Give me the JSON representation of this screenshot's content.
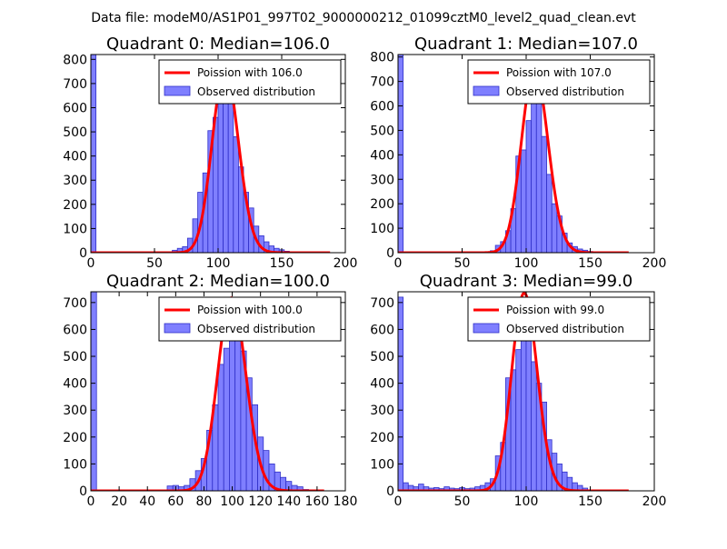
{
  "suptitle": "Data file: modeM0/AS1P01_997T02_9000000212_01099cztM0_level2_quad_clean.evt",
  "colors": {
    "bar_fill": "#7f7fff",
    "bar_edge": "#2f2fc8",
    "line": "#ff0000",
    "frame": "#000000"
  },
  "chart_data": [
    {
      "type": "bar",
      "title": "Quadrant 0: Median=106.0",
      "xlim": [
        0,
        200
      ],
      "ylim": [
        0,
        820
      ],
      "xticks": [
        0,
        50,
        100,
        150,
        200
      ],
      "yticks": [
        0,
        100,
        200,
        300,
        400,
        500,
        600,
        700,
        800
      ],
      "legend_position": "top-right",
      "legend": {
        "line": "Poission with 106.0",
        "bars": "Observed distribution"
      },
      "bin_width": 4,
      "bins": [
        [
          0,
          820
        ],
        [
          64,
          10
        ],
        [
          68,
          18
        ],
        [
          72,
          25
        ],
        [
          76,
          60
        ],
        [
          80,
          140
        ],
        [
          84,
          250
        ],
        [
          88,
          330
        ],
        [
          92,
          505
        ],
        [
          96,
          560
        ],
        [
          100,
          700
        ],
        [
          104,
          760
        ],
        [
          108,
          750
        ],
        [
          112,
          480
        ],
        [
          116,
          355
        ],
        [
          120,
          250
        ],
        [
          124,
          185
        ],
        [
          128,
          110
        ],
        [
          132,
          70
        ],
        [
          136,
          45
        ],
        [
          140,
          28
        ],
        [
          144,
          18
        ],
        [
          148,
          12
        ],
        [
          152,
          6
        ],
        [
          156,
          3
        ]
      ],
      "poisson_lambda": 106.0,
      "poisson_scale": 781,
      "line_xmax": 188
    },
    {
      "type": "bar",
      "title": "Quadrant 1: Median=107.0",
      "xlim": [
        0,
        200
      ],
      "ylim": [
        0,
        810
      ],
      "xticks": [
        0,
        50,
        100,
        150,
        200
      ],
      "yticks": [
        0,
        100,
        200,
        300,
        400,
        500,
        600,
        700,
        800
      ],
      "legend_position": "top-right",
      "legend": {
        "line": "Poission with 107.0",
        "bars": "Observed distribution"
      },
      "bin_width": 4,
      "bins": [
        [
          0,
          810
        ],
        [
          72,
          8
        ],
        [
          76,
          30
        ],
        [
          80,
          45
        ],
        [
          84,
          90
        ],
        [
          88,
          180
        ],
        [
          92,
          395
        ],
        [
          96,
          420
        ],
        [
          100,
          540
        ],
        [
          104,
          690
        ],
        [
          108,
          620
        ],
        [
          112,
          475
        ],
        [
          116,
          320
        ],
        [
          120,
          200
        ],
        [
          124,
          150
        ],
        [
          128,
          80
        ],
        [
          132,
          40
        ],
        [
          136,
          25
        ],
        [
          140,
          15
        ],
        [
          144,
          10
        ],
        [
          148,
          5
        ]
      ],
      "poisson_lambda": 107.0,
      "poisson_scale": 778,
      "line_xmax": 180
    },
    {
      "type": "bar",
      "title": "Quadrant 2: Median=100.0",
      "xlim": [
        0,
        180
      ],
      "ylim": [
        0,
        740
      ],
      "xticks": [
        0,
        20,
        40,
        60,
        80,
        100,
        120,
        140,
        160,
        180
      ],
      "yticks": [
        0,
        100,
        200,
        300,
        400,
        500,
        600,
        700
      ],
      "legend_position": "top-right",
      "legend": {
        "line": "Poission with 100.0",
        "bars": "Observed distribution"
      },
      "bin_width": 4,
      "bins": [
        [
          0,
          740
        ],
        [
          54,
          18
        ],
        [
          58,
          20
        ],
        [
          62,
          15
        ],
        [
          66,
          20
        ],
        [
          70,
          45
        ],
        [
          74,
          75
        ],
        [
          78,
          120
        ],
        [
          82,
          225
        ],
        [
          86,
          320
        ],
        [
          90,
          470
        ],
        [
          94,
          530
        ],
        [
          98,
          650
        ],
        [
          102,
          570
        ],
        [
          106,
          520
        ],
        [
          110,
          420
        ],
        [
          114,
          320
        ],
        [
          118,
          200
        ],
        [
          122,
          150
        ],
        [
          126,
          100
        ],
        [
          130,
          70
        ],
        [
          134,
          50
        ],
        [
          138,
          35
        ],
        [
          142,
          20
        ],
        [
          146,
          15
        ],
        [
          150,
          5
        ]
      ],
      "poisson_lambda": 100.0,
      "poisson_scale": 716,
      "line_xmax": 165
    },
    {
      "type": "bar",
      "title": "Quadrant 3: Median=99.0",
      "xlim": [
        0,
        200
      ],
      "ylim": [
        0,
        740
      ],
      "xticks": [
        0,
        50,
        100,
        150,
        200
      ],
      "yticks": [
        0,
        100,
        200,
        300,
        400,
        500,
        600,
        700
      ],
      "legend_position": "top-right",
      "legend": {
        "line": "Poission with 99.0",
        "bars": "Observed distribution"
      },
      "bin_width": 4,
      "bins": [
        [
          0,
          720
        ],
        [
          4,
          30
        ],
        [
          8,
          20
        ],
        [
          12,
          15
        ],
        [
          16,
          25
        ],
        [
          20,
          15
        ],
        [
          24,
          10
        ],
        [
          28,
          12
        ],
        [
          32,
          8
        ],
        [
          36,
          15
        ],
        [
          40,
          10
        ],
        [
          44,
          8
        ],
        [
          48,
          12
        ],
        [
          52,
          8
        ],
        [
          56,
          10
        ],
        [
          60,
          15
        ],
        [
          64,
          20
        ],
        [
          68,
          30
        ],
        [
          72,
          45
        ],
        [
          76,
          130
        ],
        [
          80,
          180
        ],
        [
          84,
          420
        ],
        [
          88,
          450
        ],
        [
          92,
          525
        ],
        [
          96,
          630
        ],
        [
          100,
          610
        ],
        [
          104,
          480
        ],
        [
          108,
          400
        ],
        [
          112,
          330
        ],
        [
          116,
          190
        ],
        [
          120,
          140
        ],
        [
          124,
          100
        ],
        [
          128,
          70
        ],
        [
          132,
          50
        ],
        [
          136,
          30
        ],
        [
          140,
          20
        ],
        [
          144,
          10
        ]
      ],
      "poisson_lambda": 99.0,
      "poisson_scale": 730,
      "line_xmax": 180
    }
  ]
}
